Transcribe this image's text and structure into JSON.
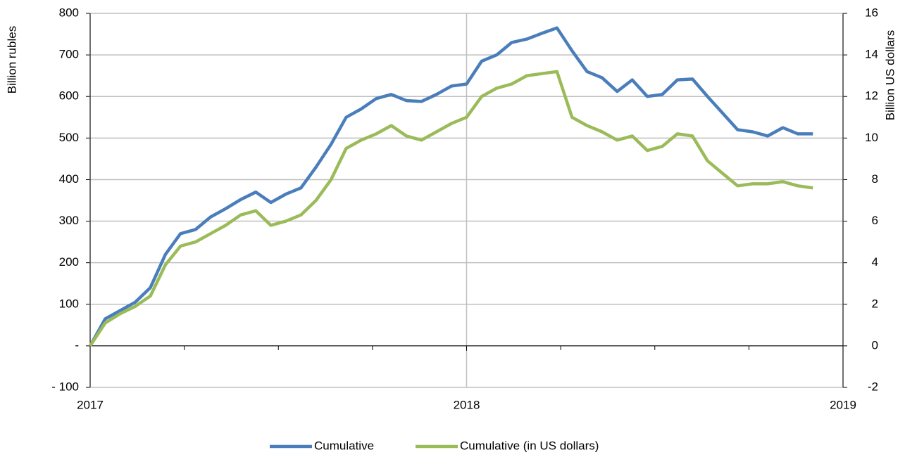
{
  "chart_data": {
    "type": "line",
    "y_label": "Billion rubles",
    "y2_label": "Billion US dollars",
    "x": [
      2017,
      2017.04,
      2017.08,
      2017.12,
      2017.16,
      2017.2,
      2017.24,
      2017.28,
      2017.32,
      2017.36,
      2017.4,
      2017.44,
      2017.48,
      2017.52,
      2017.56,
      2017.6,
      2017.64,
      2017.68,
      2017.72,
      2017.76,
      2017.8,
      2017.84,
      2017.88,
      2017.92,
      2017.96,
      2018,
      2018.04,
      2018.08,
      2018.12,
      2018.16,
      2018.2,
      2018.24,
      2018.28,
      2018.32,
      2018.36,
      2018.4,
      2018.44,
      2018.48,
      2018.52,
      2018.56,
      2018.6,
      2018.64,
      2018.68,
      2018.72,
      2018.76,
      2018.8,
      2018.84,
      2018.88,
      2018.92
    ],
    "series": [
      {
        "name": "Cumulative",
        "color": "#4a7ebb",
        "values": [
          0,
          65,
          85,
          105,
          140,
          220,
          270,
          280,
          310,
          330,
          352,
          370,
          345,
          365,
          380,
          430,
          485,
          550,
          570,
          595,
          605,
          590,
          588,
          605,
          625,
          630,
          685,
          700,
          730,
          738,
          752,
          765,
          710,
          660,
          645,
          612,
          640,
          600,
          605,
          640,
          642,
          600,
          560,
          520,
          515,
          505,
          525,
          510,
          510
        ]
      },
      {
        "name": "Cumulative (in US dollars)",
        "color": "#9bbb59",
        "axis": "y2",
        "values": [
          0,
          1.1,
          1.55,
          1.9,
          2.4,
          3.9,
          4.8,
          5.0,
          5.4,
          5.8,
          6.3,
          6.5,
          5.8,
          6.0,
          6.3,
          7.0,
          8.0,
          9.5,
          9.9,
          10.2,
          10.6,
          10.1,
          9.9,
          10.3,
          10.7,
          11.0,
          12.0,
          12.4,
          12.6,
          13.0,
          13.1,
          13.2,
          11.0,
          10.6,
          10.3,
          9.9,
          10.1,
          9.4,
          9.6,
          10.2,
          10.1,
          8.9,
          8.3,
          7.7,
          7.8,
          7.8,
          7.9,
          7.7,
          7.6
        ]
      }
    ],
    "xlim": [
      2017,
      2019
    ],
    "xticks": [
      2017,
      2018,
      2019
    ],
    "xminorticks": [
      2017.25,
      2017.5,
      2017.75,
      2018.25,
      2018.5,
      2018.75
    ],
    "ylim": [
      -100,
      800
    ],
    "yticks": [
      {
        "value": -100,
        "label": "- 100"
      },
      {
        "value": 0,
        "label": "-"
      },
      100,
      200,
      300,
      400,
      500,
      600,
      700,
      800
    ],
    "y2lim": [
      -2,
      16
    ],
    "y2ticks": [
      -2,
      0,
      2,
      4,
      6,
      8,
      10,
      12,
      14,
      16
    ],
    "grid": true,
    "legend": "bottom"
  }
}
